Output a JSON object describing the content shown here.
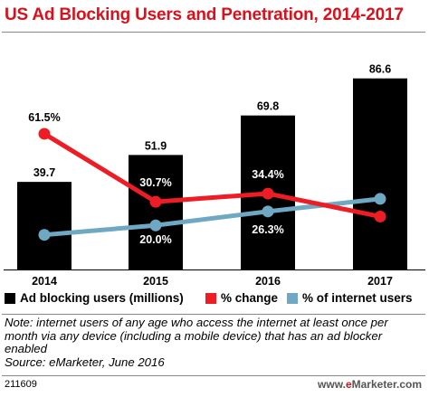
{
  "chart_data": {
    "type": "bar",
    "title": "US Ad Blocking Users and Penetration, 2014-2017",
    "categories": [
      "2014",
      "2015",
      "2016",
      "2017"
    ],
    "series": [
      {
        "name": "Ad blocking users (millions)",
        "type": "bar",
        "color": "#000000",
        "values": [
          39.7,
          51.9,
          69.8,
          86.6
        ],
        "labels": [
          "39.7",
          "51.9",
          "69.8",
          "86.6"
        ]
      },
      {
        "name": "% change",
        "type": "line",
        "color": "#ee1c24",
        "values": [
          61.5,
          30.7,
          34.4,
          24.0
        ],
        "labels": [
          "61.5%",
          "30.7%",
          "34.4%",
          "24.0%"
        ]
      },
      {
        "name": "% of internet users",
        "type": "line",
        "color": "#6fa8c3",
        "values": [
          15.7,
          20.0,
          26.3,
          32.0
        ],
        "labels": [
          "15.7%",
          "20.0%",
          "26.3%",
          "32.0%"
        ]
      }
    ],
    "ylim": [
      0,
      100
    ],
    "legend_position": "bottom"
  },
  "note": {
    "line1": "Note: internet users of any age who access the internet at least once per",
    "line2": "month via any device (including a mobile device) that has an ad blocker",
    "line3": "enabled",
    "source": "Source: eMarketer, June 2016"
  },
  "footer": {
    "chart_id": "211609",
    "brand_prefix": "www.",
    "brand_e": "e",
    "brand_suffix": "Marketer.com"
  }
}
